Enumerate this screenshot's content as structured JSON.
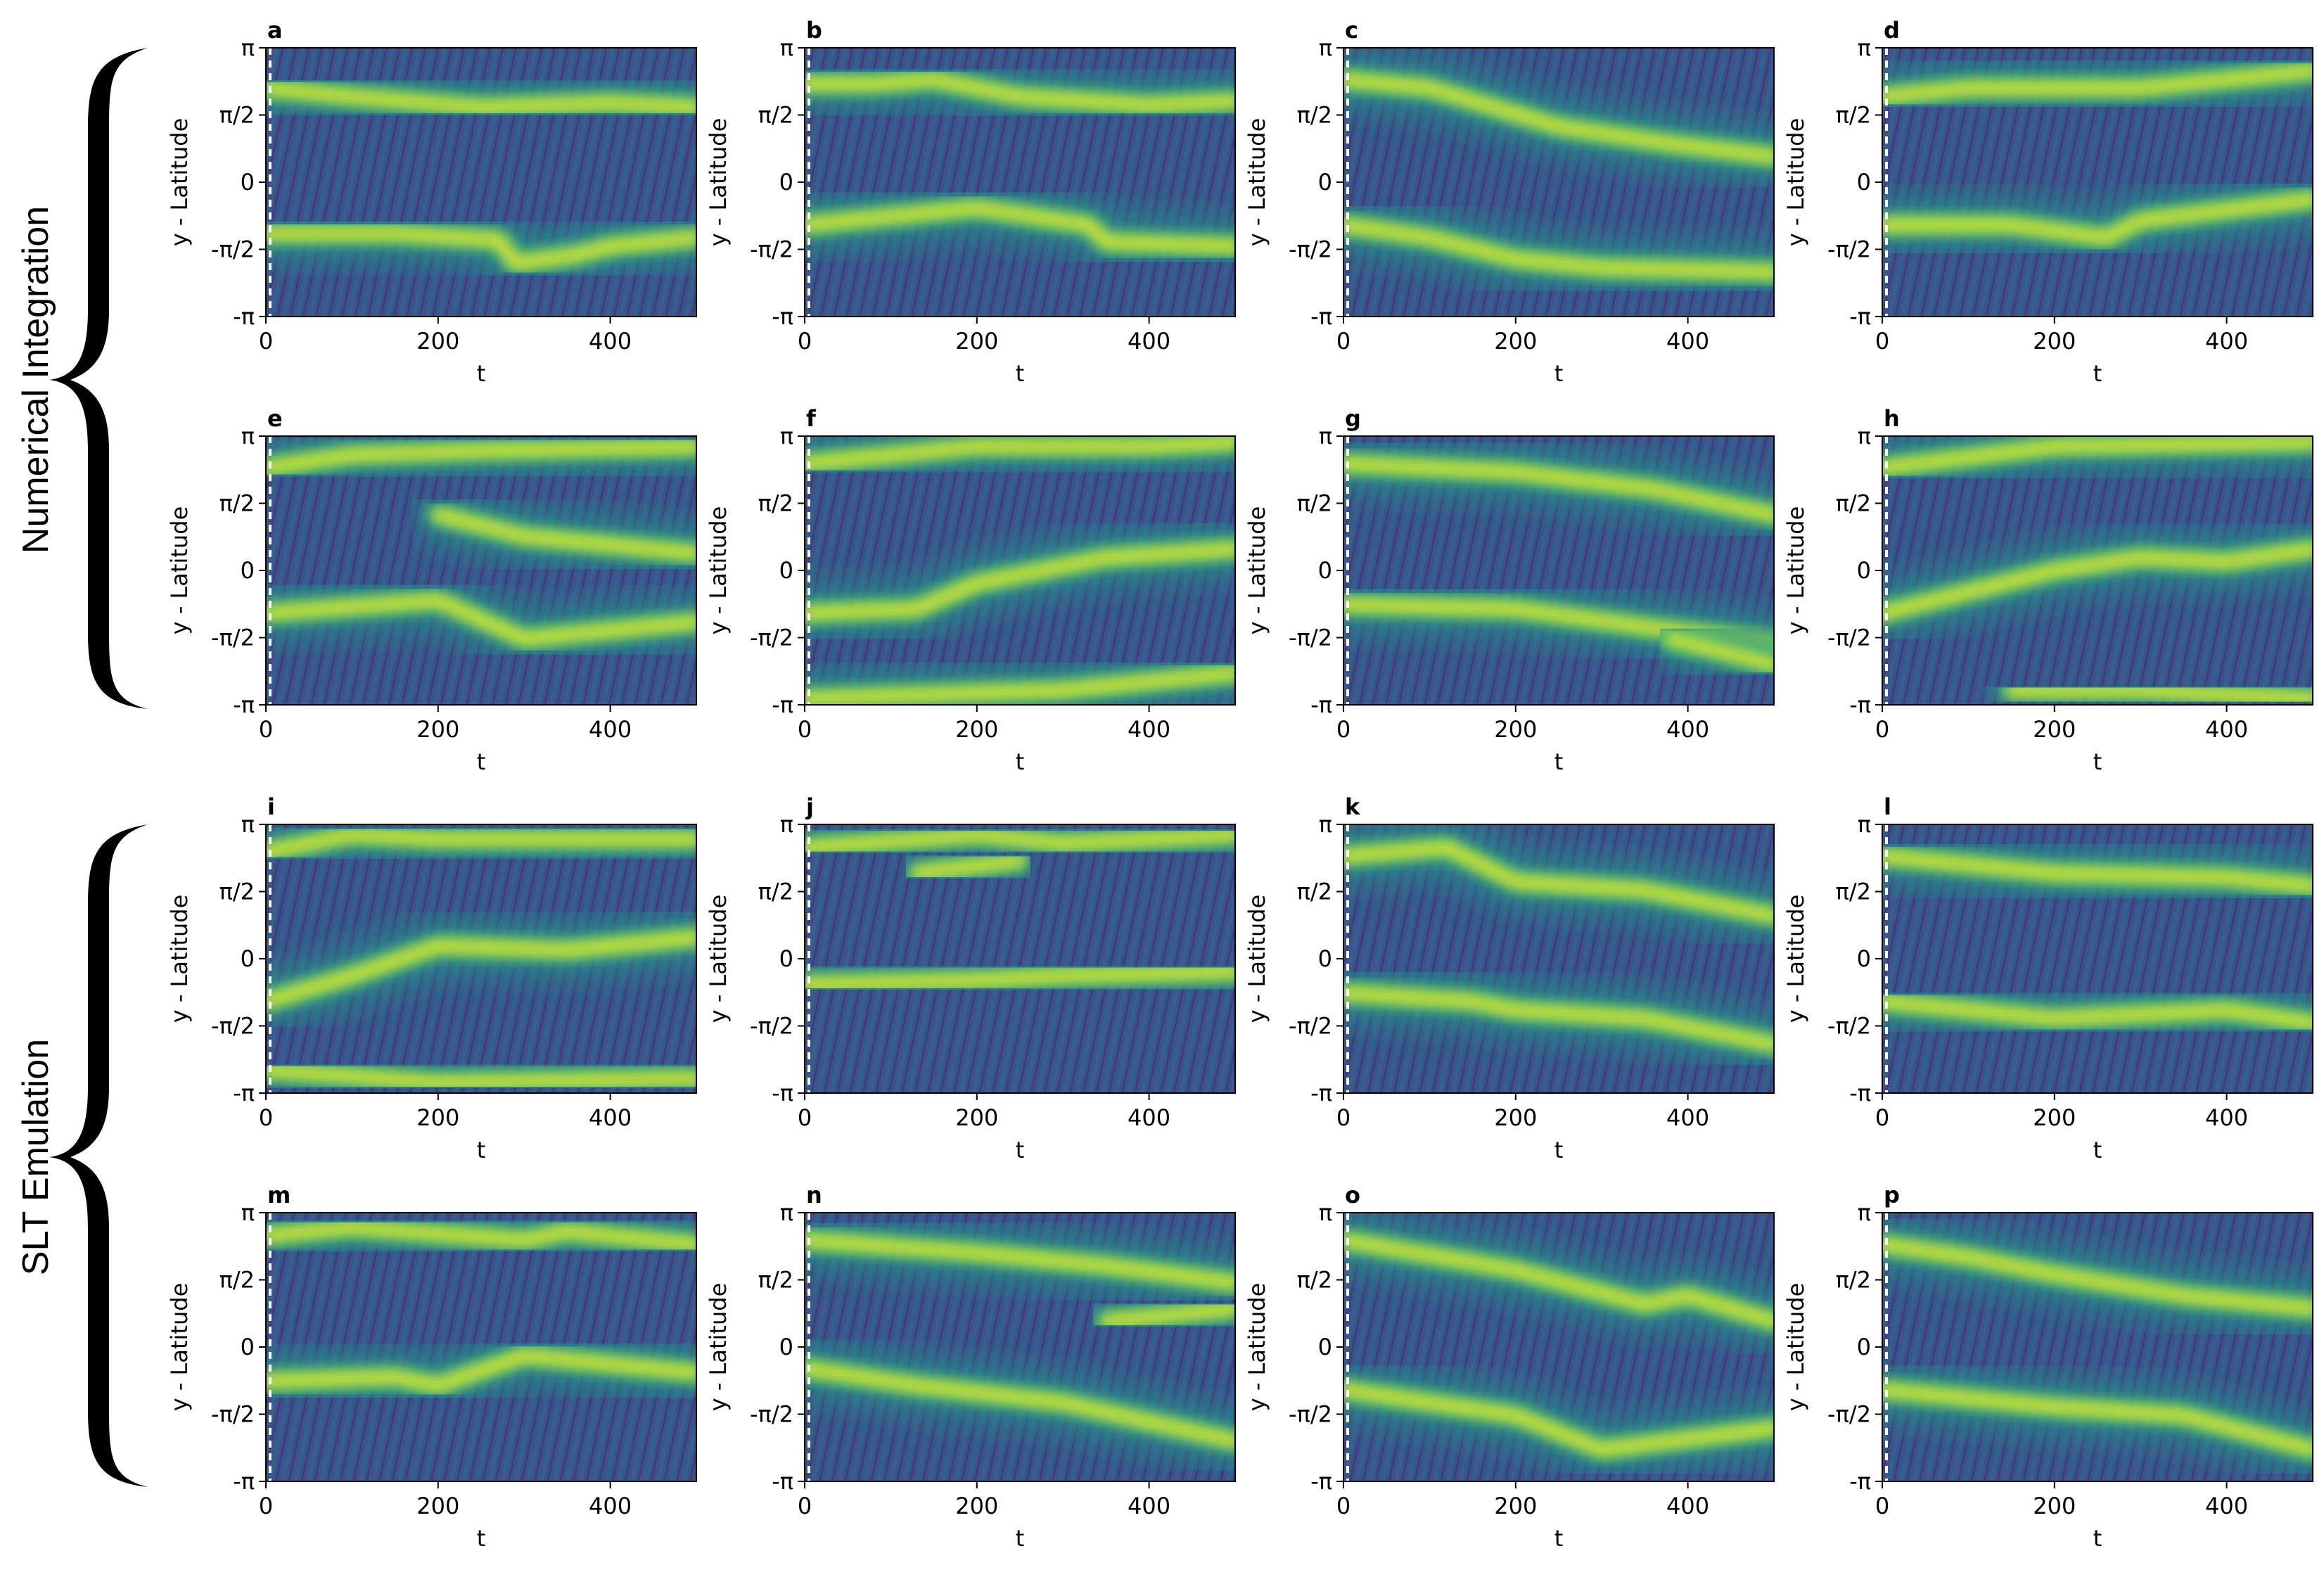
{
  "groups": [
    {
      "label": "Numerical Integration"
    },
    {
      "label": "SLT Emulation"
    }
  ],
  "axes": {
    "xlabel": "t",
    "ylabel": "y - Latitude",
    "xticks": [
      0,
      200,
      400
    ],
    "xtick_labels": [
      "0",
      "200",
      "400"
    ],
    "yticks": [
      3.14159,
      1.5708,
      0,
      -1.5708,
      -3.14159
    ],
    "ytick_labels": [
      "π",
      "π/2",
      "0",
      "-π/2",
      "-π"
    ],
    "xlim": [
      0,
      500
    ],
    "ylim": [
      -3.14159,
      3.14159
    ]
  },
  "colormap": {
    "name": "viridis",
    "low": "#440154",
    "mid": "#21918c",
    "high": "#fde725"
  },
  "chart_data": [
    {
      "type": "heatmap",
      "label": "a",
      "group": "Numerical Integration",
      "jets": [
        [
          [
            0,
            2.2
          ],
          [
            100,
            2.0
          ],
          [
            250,
            1.75
          ],
          [
            400,
            1.85
          ],
          [
            500,
            1.75
          ]
        ],
        [
          [
            0,
            -1.2
          ],
          [
            150,
            -1.2
          ],
          [
            270,
            -1.35
          ],
          [
            290,
            -1.9
          ],
          [
            360,
            -1.7
          ],
          [
            400,
            -1.5
          ],
          [
            500,
            -1.3
          ]
        ]
      ]
    },
    {
      "type": "heatmap",
      "label": "b",
      "group": "Numerical Integration",
      "jets": [
        [
          [
            0,
            2.3
          ],
          [
            80,
            2.3
          ],
          [
            150,
            2.4
          ],
          [
            250,
            2.0
          ],
          [
            400,
            1.8
          ],
          [
            500,
            1.9
          ]
        ],
        [
          [
            0,
            -1.0
          ],
          [
            200,
            -0.6
          ],
          [
            330,
            -1.0
          ],
          [
            350,
            -1.4
          ],
          [
            500,
            -1.5
          ]
        ]
      ]
    },
    {
      "type": "heatmap",
      "label": "c",
      "group": "Numerical Integration",
      "jets": [
        [
          [
            0,
            2.4
          ],
          [
            100,
            2.2
          ],
          [
            250,
            1.3
          ],
          [
            380,
            0.9
          ],
          [
            500,
            0.6
          ]
        ],
        [
          [
            0,
            -1.0
          ],
          [
            100,
            -1.3
          ],
          [
            200,
            -1.8
          ],
          [
            300,
            -2.0
          ],
          [
            500,
            -2.1
          ]
        ]
      ]
    },
    {
      "type": "heatmap",
      "label": "d",
      "group": "Numerical Integration",
      "jets": [
        [
          [
            0,
            2.0
          ],
          [
            100,
            2.2
          ],
          [
            300,
            2.2
          ],
          [
            500,
            2.6
          ]
        ],
        [
          [
            0,
            -1.0
          ],
          [
            150,
            -1.0
          ],
          [
            260,
            -1.3
          ],
          [
            300,
            -0.9
          ],
          [
            500,
            -0.4
          ]
        ]
      ]
    },
    {
      "type": "heatmap",
      "label": "e",
      "group": "Numerical Integration",
      "jets": [
        [
          [
            0,
            2.4
          ],
          [
            100,
            2.7
          ],
          [
            250,
            2.8
          ],
          [
            500,
            2.9
          ]
        ],
        [
          [
            200,
            1.3
          ],
          [
            300,
            0.8
          ],
          [
            500,
            0.4
          ]
        ],
        [
          [
            0,
            -1.0
          ],
          [
            200,
            -0.7
          ],
          [
            300,
            -1.6
          ],
          [
            500,
            -1.2
          ]
        ]
      ]
    },
    {
      "type": "heatmap",
      "label": "f",
      "group": "Numerical Integration",
      "jets": [
        [
          [
            0,
            2.5
          ],
          [
            200,
            2.9
          ],
          [
            400,
            2.9
          ],
          [
            500,
            3.0
          ]
        ],
        [
          [
            0,
            -1.0
          ],
          [
            130,
            -0.9
          ],
          [
            200,
            -0.3
          ],
          [
            350,
            0.3
          ],
          [
            500,
            0.5
          ]
        ],
        [
          [
            0,
            -3.0
          ],
          [
            300,
            -2.8
          ],
          [
            500,
            -2.4
          ]
        ]
      ]
    },
    {
      "type": "heatmap",
      "label": "g",
      "group": "Numerical Integration",
      "jets": [
        [
          [
            0,
            2.5
          ],
          [
            200,
            2.3
          ],
          [
            360,
            1.9
          ],
          [
            500,
            1.3
          ]
        ],
        [
          [
            0,
            -0.8
          ],
          [
            200,
            -0.9
          ],
          [
            380,
            -1.4
          ],
          [
            500,
            -1.7
          ]
        ],
        [
          [
            380,
            -1.6
          ],
          [
            500,
            -2.2
          ]
        ]
      ]
    },
    {
      "type": "heatmap",
      "label": "h",
      "group": "Numerical Integration",
      "jets": [
        [
          [
            0,
            2.4
          ],
          [
            200,
            2.9
          ],
          [
            500,
            3.0
          ]
        ],
        [
          [
            0,
            -1.0
          ],
          [
            200,
            0.0
          ],
          [
            300,
            0.3
          ],
          [
            400,
            0.2
          ],
          [
            500,
            0.5
          ]
        ],
        [
          [
            150,
            -2.8
          ],
          [
            300,
            -2.8
          ],
          [
            500,
            -3.0
          ]
        ]
      ]
    },
    {
      "type": "heatmap",
      "label": "i",
      "group": "SLT Emulation",
      "jets": [
        [
          [
            0,
            2.5
          ],
          [
            100,
            2.9
          ],
          [
            200,
            2.8
          ],
          [
            500,
            2.8
          ]
        ],
        [
          [
            0,
            -1.0
          ],
          [
            100,
            -0.4
          ],
          [
            200,
            0.3
          ],
          [
            350,
            0.2
          ],
          [
            500,
            0.5
          ]
        ],
        [
          [
            0,
            -2.6
          ],
          [
            200,
            -2.9
          ],
          [
            500,
            -2.8
          ]
        ]
      ]
    },
    {
      "type": "heatmap",
      "label": "j",
      "group": "SLT Emulation",
      "jets": [
        [
          [
            0,
            2.6
          ],
          [
            200,
            2.9
          ],
          [
            300,
            2.7
          ],
          [
            500,
            2.9
          ]
        ],
        [
          [
            0,
            -0.6
          ],
          [
            200,
            -0.5
          ],
          [
            300,
            -0.4
          ],
          [
            500,
            -0.3
          ]
        ],
        [
          [
            130,
            2.0
          ],
          [
            250,
            2.3
          ]
        ]
      ]
    },
    {
      "type": "heatmap",
      "label": "k",
      "group": "SLT Emulation",
      "jets": [
        [
          [
            0,
            2.4
          ],
          [
            120,
            2.6
          ],
          [
            200,
            1.8
          ],
          [
            350,
            1.6
          ],
          [
            500,
            1.0
          ]
        ],
        [
          [
            0,
            -0.8
          ],
          [
            150,
            -1.0
          ],
          [
            200,
            -1.2
          ],
          [
            350,
            -1.4
          ],
          [
            500,
            -2.0
          ]
        ]
      ]
    },
    {
      "type": "heatmap",
      "label": "l",
      "group": "SLT Emulation",
      "jets": [
        [
          [
            0,
            2.4
          ],
          [
            200,
            2.0
          ],
          [
            400,
            1.9
          ],
          [
            500,
            1.7
          ]
        ],
        [
          [
            0,
            -1.0
          ],
          [
            200,
            -1.4
          ],
          [
            400,
            -1.2
          ],
          [
            500,
            -1.5
          ]
        ]
      ]
    },
    {
      "type": "heatmap",
      "label": "m",
      "group": "SLT Emulation",
      "jets": [
        [
          [
            0,
            2.6
          ],
          [
            100,
            2.8
          ],
          [
            300,
            2.5
          ],
          [
            350,
            2.7
          ],
          [
            500,
            2.4
          ]
        ],
        [
          [
            0,
            -0.8
          ],
          [
            150,
            -0.7
          ],
          [
            200,
            -0.9
          ],
          [
            300,
            -0.2
          ],
          [
            500,
            -0.6
          ]
        ]
      ]
    },
    {
      "type": "heatmap",
      "label": "n",
      "group": "SLT Emulation",
      "jets": [
        [
          [
            0,
            2.5
          ],
          [
            200,
            2.2
          ],
          [
            350,
            1.9
          ],
          [
            500,
            1.5
          ]
        ],
        [
          [
            0,
            -0.5
          ],
          [
            130,
            -0.9
          ],
          [
            300,
            -1.3
          ],
          [
            500,
            -2.2
          ]
        ],
        [
          [
            350,
            0.6
          ],
          [
            500,
            0.9
          ]
        ]
      ]
    },
    {
      "type": "heatmap",
      "label": "o",
      "group": "SLT Emulation",
      "jets": [
        [
          [
            0,
            2.5
          ],
          [
            200,
            1.8
          ],
          [
            350,
            1.0
          ],
          [
            400,
            1.2
          ],
          [
            500,
            0.6
          ]
        ],
        [
          [
            0,
            -1.0
          ],
          [
            200,
            -1.6
          ],
          [
            300,
            -2.4
          ],
          [
            500,
            -1.9
          ]
        ]
      ]
    },
    {
      "type": "heatmap",
      "label": "p",
      "group": "SLT Emulation",
      "jets": [
        [
          [
            0,
            2.4
          ],
          [
            100,
            2.1
          ],
          [
            200,
            1.7
          ],
          [
            350,
            1.2
          ],
          [
            500,
            0.9
          ]
        ],
        [
          [
            0,
            -1.0
          ],
          [
            200,
            -1.4
          ],
          [
            350,
            -1.6
          ],
          [
            500,
            -2.4
          ]
        ]
      ]
    }
  ]
}
